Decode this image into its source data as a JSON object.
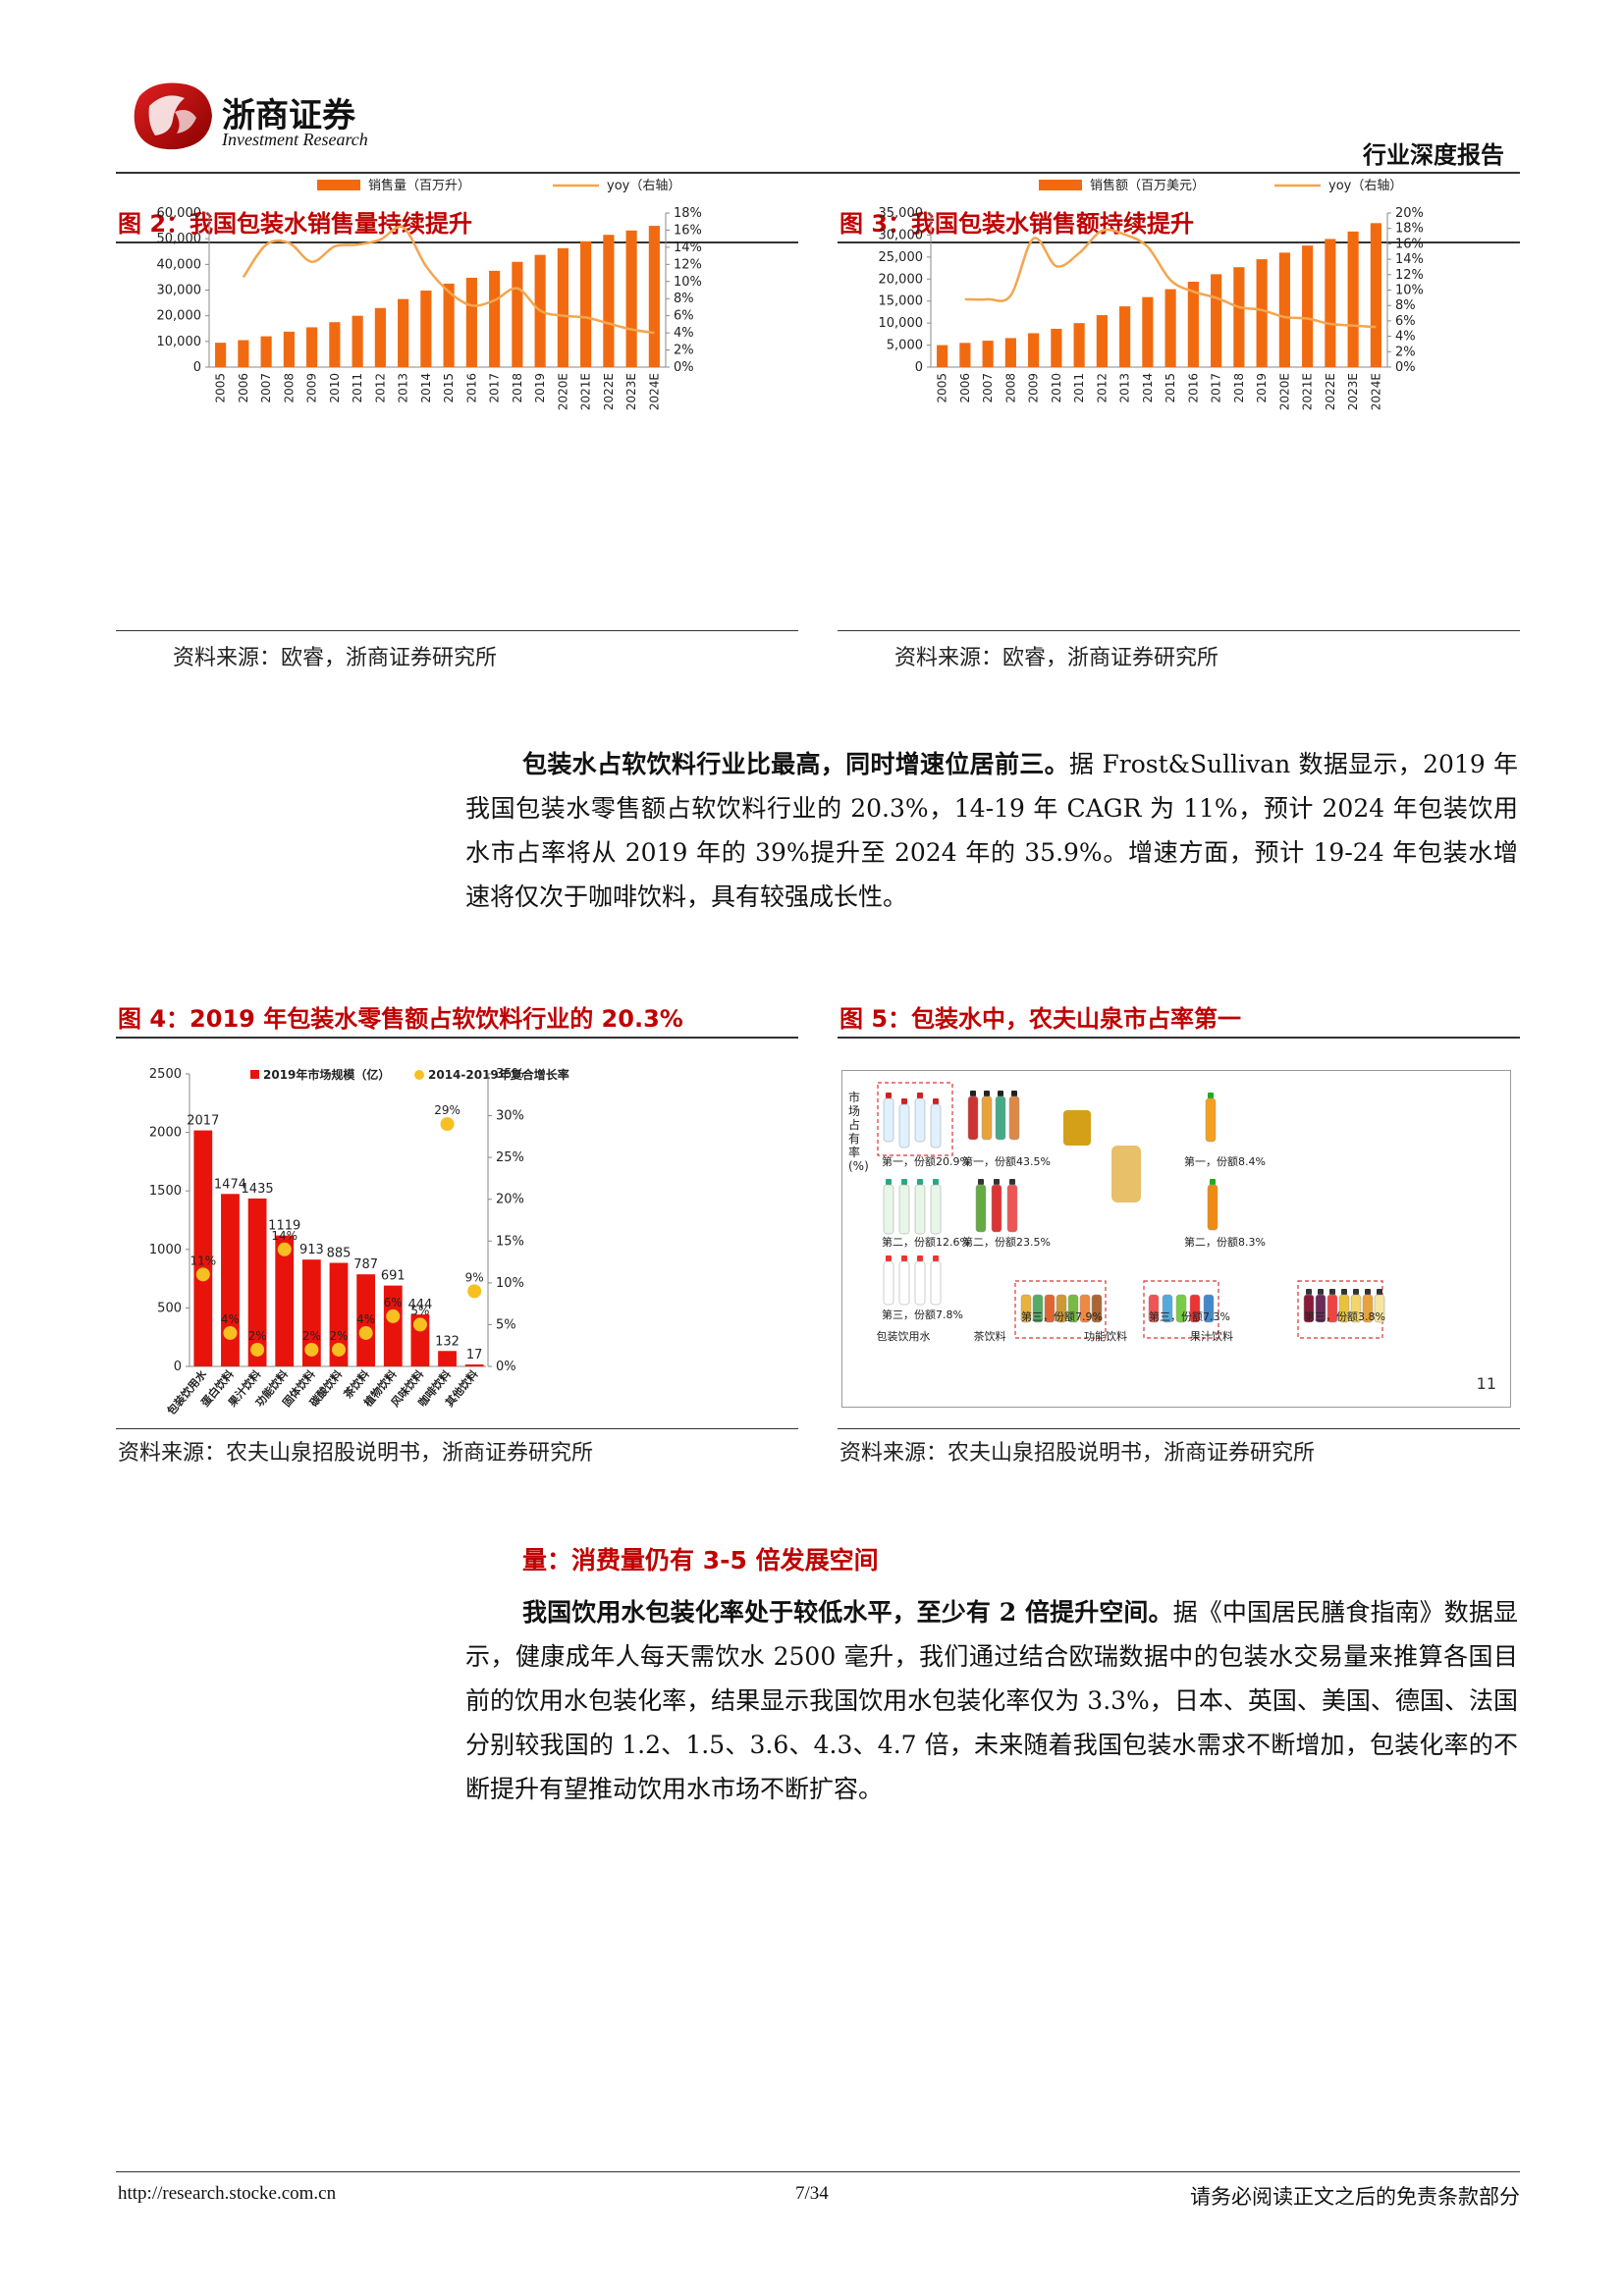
{
  "header": {
    "company_cn": "浙商证券",
    "company_en": "Investment Research",
    "report_type": "行业深度报告"
  },
  "fig2": {
    "title": "图 2：我国包装水销售量持续提升",
    "legend_bar": "销售量（百万升）",
    "legend_line": "yoy（右轴）",
    "source": "资料来源：欧睿，浙商证券研究所"
  },
  "fig3": {
    "title": "图 3：我国包装水销售额持续提升",
    "legend_bar": "销售额（百万美元）",
    "legend_line": "yoy（右轴）",
    "source": "资料来源：欧睿，浙商证券研究所"
  },
  "para1": {
    "bold": "包装水占软饮料行业比最高，同时增速位居前三。",
    "text": "据 Frost&Sullivan 数据显示，2019 年我国包装水零售额占软饮料行业的 20.3%，14-19 年 CAGR 为 11%，预计 2024 年包装饮用水市占率将从 2019 年的 39%提升至 2024 年的 35.9%。增速方面，预计 19-24 年包装水增速将仅次于咖啡饮料，具有较强成长性。"
  },
  "fig4": {
    "title": "图 4：2019 年包装水零售额占软饮料行业的 20.3%",
    "legend_bar": "2019年市场规模（亿）",
    "legend_dot": "2014-2019年复合增长率",
    "source": "资料来源：农夫山泉招股说明书，浙商证券研究所"
  },
  "fig5": {
    "title": "图 5：包装水中，农夫山泉市占率第一",
    "ylabel": "市场占有率(%)",
    "page_mark": "11",
    "source": "资料来源：农夫山泉招股说明书，浙商证券研究所",
    "columns": [
      "包装饮用水",
      "茶饮料",
      "功能饮料",
      "果汁饮料"
    ],
    "labels": {
      "water": [
        "第一，份额20.9%",
        "第二，份额12.6%",
        "第三，份额7.8%"
      ],
      "tea": [
        "第一，份额43.5%",
        "第二，份额23.5%",
        "第三，份额7.9%"
      ],
      "func": [
        "第三，份额7.3%"
      ],
      "juice": [
        "第一，份额8.4%",
        "第二，份额8.3%",
        "第三，份额3.8%"
      ]
    }
  },
  "section": {
    "heading": "量：消费量仍有 3-5 倍发展空间"
  },
  "para2": {
    "bold": "我国饮用水包装化率处于较低水平，至少有 2 倍提升空间。",
    "text": "据《中国居民膳食指南》数据显示，健康成年人每天需饮水 2500 毫升，我们通过结合欧瑞数据中的包装水交易量来推算各国目前的饮用水包装化率，结果显示我国饮用水包装化率仅为 3.3%，日本、英国、美国、德国、法国分别较我国的 1.2、1.5、3.6、4.3、4.7 倍，未来随着我国包装水需求不断增加，包装化率的不断提升有望推动饮用水市场不断扩容。"
  },
  "footer": {
    "url": "http://research.stocke.com.cn",
    "page": "7/34",
    "disclaimer": "请务必阅读正文之后的免责条款部分"
  },
  "colors": {
    "bar": "#f26a10",
    "line": "#f4a54e",
    "red_bar": "#e8140c",
    "dot": "#f6c021",
    "title_red": "#c00000"
  },
  "chart_data": [
    {
      "id": "fig2",
      "type": "bar",
      "categories": [
        "2005",
        "2006",
        "2007",
        "2008",
        "2009",
        "2010",
        "2011",
        "2012",
        "2013",
        "2014",
        "2015",
        "2016",
        "2017",
        "2018",
        "2019",
        "2020E",
        "2021E",
        "2022E",
        "2023E",
        "2024E"
      ],
      "series": [
        {
          "name": "销售量（百万升）",
          "type": "bar",
          "axis": "left",
          "values": [
            9500,
            10500,
            12000,
            13800,
            15500,
            17500,
            20000,
            23000,
            26500,
            29800,
            32500,
            34800,
            37500,
            41000,
            43700,
            46300,
            49000,
            51500,
            53200,
            55000
          ]
        },
        {
          "name": "yoy（右轴）",
          "type": "line",
          "axis": "right",
          "values": [
            null,
            10.5,
            14.3,
            14.5,
            12.3,
            14.1,
            14.3,
            14.9,
            16.3,
            11.8,
            8.8,
            7.2,
            7.8,
            9.2,
            6.6,
            6.0,
            5.8,
            5.1,
            4.4,
            4.0
          ]
        }
      ],
      "ylim": [
        0,
        60000
      ],
      "y2lim": [
        0,
        18
      ],
      "yticks": [
        "0",
        "10,000",
        "20,000",
        "30,000",
        "40,000",
        "50,000",
        "60,000"
      ],
      "y2ticks": [
        "0%",
        "2%",
        "4%",
        "6%",
        "8%",
        "10%",
        "12%",
        "14%",
        "16%",
        "18%"
      ]
    },
    {
      "id": "fig3",
      "type": "bar",
      "categories": [
        "2005",
        "2006",
        "2007",
        "2008",
        "2009",
        "2010",
        "2011",
        "2012",
        "2013",
        "2014",
        "2015",
        "2016",
        "2017",
        "2018",
        "2019",
        "2020E",
        "2021E",
        "2022E",
        "2023E",
        "2024E"
      ],
      "series": [
        {
          "name": "销售额（百万美元）",
          "type": "bar",
          "axis": "left",
          "values": [
            5000,
            5500,
            6000,
            6600,
            7700,
            8700,
            10000,
            11800,
            13800,
            15900,
            17700,
            19400,
            21100,
            22700,
            24500,
            26000,
            27600,
            29100,
            30800,
            32700
          ]
        },
        {
          "name": "yoy（右轴）",
          "type": "line",
          "axis": "right",
          "values": [
            null,
            8.8,
            8.8,
            9.3,
            16.7,
            13.1,
            14.8,
            17.7,
            17.2,
            15.6,
            11.3,
            9.8,
            9.0,
            7.8,
            7.4,
            6.5,
            6.3,
            5.6,
            5.4,
            5.2
          ]
        }
      ],
      "ylim": [
        0,
        35000
      ],
      "y2lim": [
        0,
        20
      ],
      "yticks": [
        "0",
        "5,000",
        "10,000",
        "15,000",
        "20,000",
        "25,000",
        "30,000",
        "35,000"
      ],
      "y2ticks": [
        "0%",
        "2%",
        "4%",
        "6%",
        "8%",
        "10%",
        "12%",
        "14%",
        "16%",
        "18%",
        "20%"
      ]
    },
    {
      "id": "fig4",
      "type": "bar",
      "categories": [
        "包装饮用水",
        "蛋白饮料",
        "果汁饮料",
        "功能饮料",
        "固体饮料",
        "碳酸饮料",
        "茶饮料",
        "植物饮料",
        "风味饮料",
        "咖啡饮料",
        "其他饮料"
      ],
      "series": [
        {
          "name": "2019年市场规模（亿）",
          "type": "bar",
          "axis": "left",
          "values": [
            2017,
            1474,
            1435,
            1119,
            913,
            885,
            787,
            691,
            444,
            132,
            17
          ]
        },
        {
          "name": "2014-2019年复合增长率",
          "type": "scatter",
          "axis": "right",
          "values": [
            11,
            4,
            2,
            14,
            2,
            2,
            4,
            6,
            5,
            29,
            9
          ]
        }
      ],
      "ylim": [
        0,
        2500
      ],
      "y2lim": [
        0,
        35
      ],
      "yticks": [
        "0",
        "500",
        "1000",
        "1500",
        "2000",
        "2500"
      ],
      "y2ticks": [
        "0%",
        "5%",
        "10%",
        "15%",
        "20%",
        "25%",
        "30%",
        "35%"
      ]
    }
  ]
}
